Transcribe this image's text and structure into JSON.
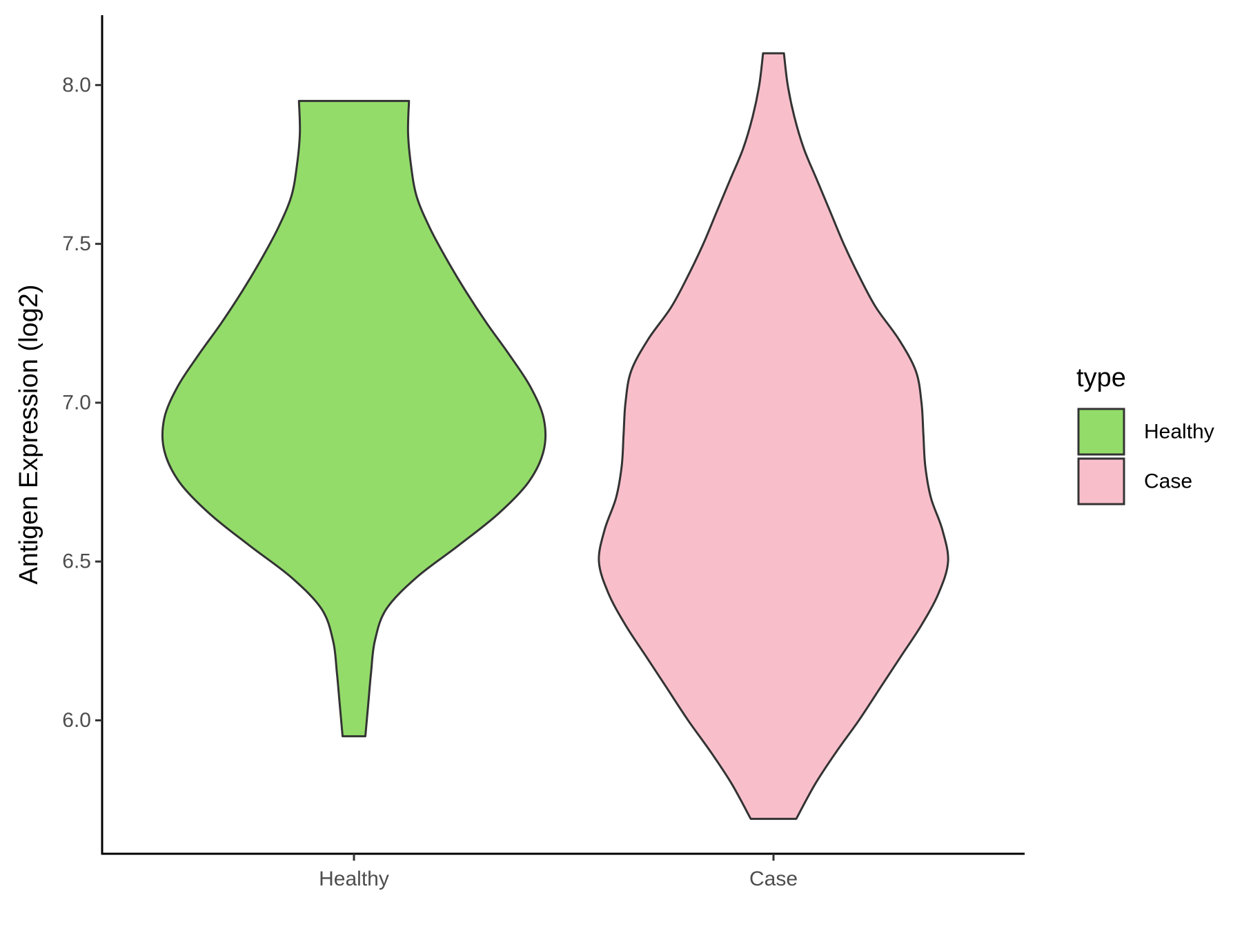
{
  "chart_data": {
    "type": "violin",
    "title": "",
    "xlabel": "",
    "ylabel": "Antigen Expression (log2)",
    "categories": [
      "Healthy",
      "Case"
    ],
    "ylim": [
      5.58,
      8.22
    ],
    "yticks": [
      6.0,
      6.5,
      7.0,
      7.5,
      8.0
    ],
    "ytick_labels": [
      "6.0",
      "6.5",
      "7.0",
      "7.5",
      "8.0"
    ],
    "grid": false,
    "legend": {
      "title": "type",
      "placement": "right",
      "items": [
        {
          "label": "Healthy",
          "color": "#93dc6a"
        },
        {
          "label": "Case",
          "color": "#f8bfcb"
        }
      ]
    },
    "series": [
      {
        "category": "Healthy",
        "color": "#93dc6a",
        "min": 5.95,
        "max": 7.95,
        "density": [
          [
            5.95,
            0.06
          ],
          [
            6.05,
            0.075
          ],
          [
            6.15,
            0.09
          ],
          [
            6.25,
            0.11
          ],
          [
            6.35,
            0.17
          ],
          [
            6.45,
            0.33
          ],
          [
            6.55,
            0.55
          ],
          [
            6.65,
            0.76
          ],
          [
            6.75,
            0.92
          ],
          [
            6.85,
            1.0
          ],
          [
            6.95,
            1.0
          ],
          [
            7.05,
            0.93
          ],
          [
            7.15,
            0.82
          ],
          [
            7.25,
            0.7
          ],
          [
            7.35,
            0.59
          ],
          [
            7.45,
            0.49
          ],
          [
            7.55,
            0.4
          ],
          [
            7.65,
            0.33
          ],
          [
            7.75,
            0.3
          ],
          [
            7.85,
            0.285
          ],
          [
            7.95,
            0.29
          ]
        ]
      },
      {
        "category": "Case",
        "color": "#f8bfcb",
        "min": 5.69,
        "max": 8.1,
        "density": [
          [
            5.69,
            0.12
          ],
          [
            5.8,
            0.22
          ],
          [
            5.9,
            0.33
          ],
          [
            6.0,
            0.45
          ],
          [
            6.1,
            0.56
          ],
          [
            6.2,
            0.67
          ],
          [
            6.3,
            0.78
          ],
          [
            6.4,
            0.87
          ],
          [
            6.5,
            0.92
          ],
          [
            6.6,
            0.89
          ],
          [
            6.7,
            0.83
          ],
          [
            6.8,
            0.8
          ],
          [
            6.9,
            0.79
          ],
          [
            7.0,
            0.78
          ],
          [
            7.1,
            0.75
          ],
          [
            7.2,
            0.66
          ],
          [
            7.3,
            0.54
          ],
          [
            7.4,
            0.45
          ],
          [
            7.5,
            0.37
          ],
          [
            7.6,
            0.3
          ],
          [
            7.7,
            0.23
          ],
          [
            7.8,
            0.16
          ],
          [
            7.9,
            0.11
          ],
          [
            8.0,
            0.075
          ],
          [
            8.1,
            0.055
          ]
        ]
      }
    ]
  }
}
